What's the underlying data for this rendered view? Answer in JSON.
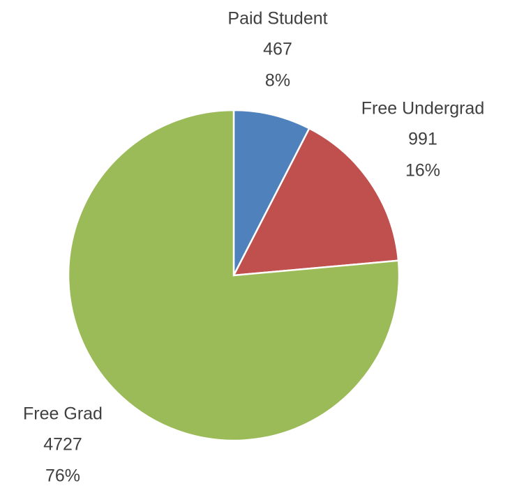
{
  "chart_data": {
    "type": "pie",
    "categories": [
      "Paid Student",
      "Free Undergrad",
      "Free Grad"
    ],
    "values": [
      467,
      991,
      4727
    ],
    "percent_labels": [
      "8%",
      "16%",
      "76%"
    ],
    "colors": [
      "#4f81bd",
      "#c0504d",
      "#9bbb59"
    ]
  }
}
